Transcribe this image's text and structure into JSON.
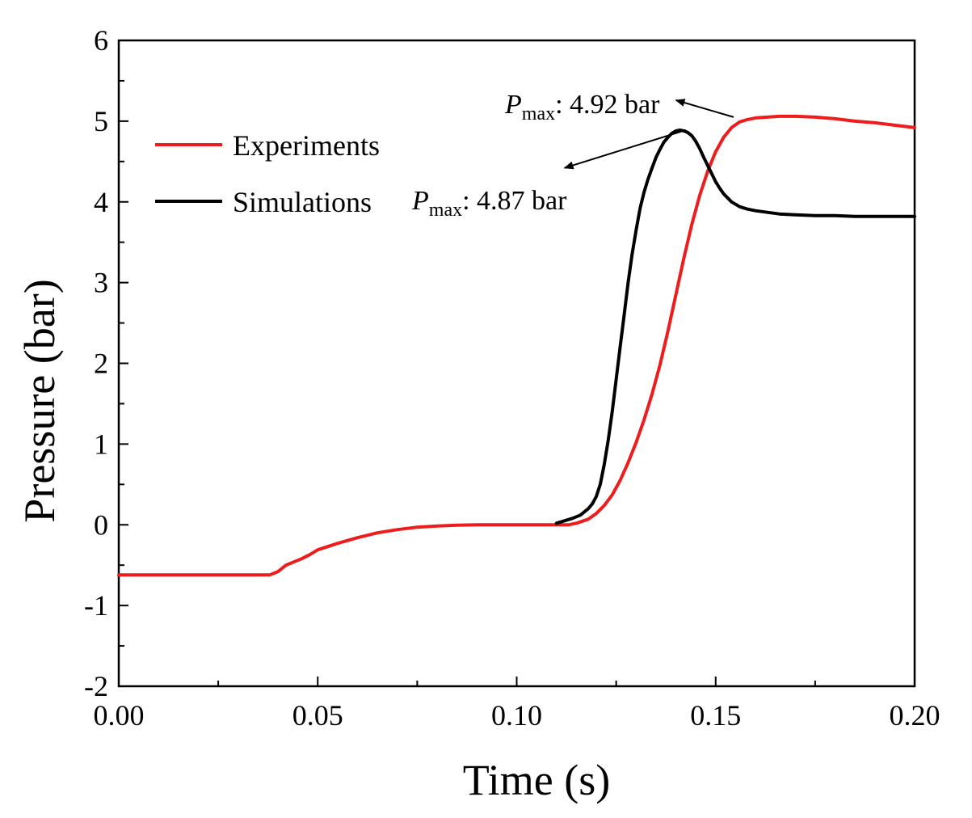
{
  "chart_data": {
    "type": "line",
    "title": "",
    "xlabel": "Time (s)",
    "ylabel": "Pressure (bar)",
    "xlim": [
      0.0,
      0.2
    ],
    "ylim": [
      -2,
      6
    ],
    "xticks": [
      0.0,
      0.05,
      0.1,
      0.15,
      0.2
    ],
    "xtick_labels": [
      "0.00",
      "0.05",
      "0.10",
      "0.15",
      "0.20"
    ],
    "yticks": [
      -2,
      -1,
      0,
      1,
      2,
      3,
      4,
      5,
      6
    ],
    "ytick_labels": [
      "-2",
      "-1",
      "0",
      "1",
      "2",
      "3",
      "4",
      "5",
      "6"
    ],
    "grid": false,
    "legend_position": "upper-left",
    "series": [
      {
        "name": "Experiments",
        "color": "#ee1c1c",
        "x": [
          0.0,
          0.01,
          0.02,
          0.03,
          0.038,
          0.04,
          0.042,
          0.044,
          0.046,
          0.048,
          0.05,
          0.055,
          0.06,
          0.065,
          0.07,
          0.075,
          0.08,
          0.085,
          0.09,
          0.095,
          0.1,
          0.105,
          0.11,
          0.113,
          0.115,
          0.118,
          0.12,
          0.122,
          0.124,
          0.126,
          0.128,
          0.13,
          0.132,
          0.134,
          0.136,
          0.138,
          0.14,
          0.142,
          0.144,
          0.146,
          0.148,
          0.15,
          0.152,
          0.154,
          0.156,
          0.158,
          0.16,
          0.163,
          0.166,
          0.17,
          0.175,
          0.18,
          0.185,
          0.19,
          0.195,
          0.2
        ],
        "y": [
          -0.62,
          -0.62,
          -0.62,
          -0.62,
          -0.62,
          -0.58,
          -0.5,
          -0.46,
          -0.42,
          -0.37,
          -0.31,
          -0.23,
          -0.16,
          -0.1,
          -0.06,
          -0.03,
          -0.015,
          -0.005,
          0.0,
          0.0,
          0.0,
          0.0,
          0.0,
          0.0,
          0.02,
          0.07,
          0.14,
          0.24,
          0.37,
          0.55,
          0.77,
          1.02,
          1.3,
          1.62,
          1.98,
          2.4,
          2.85,
          3.3,
          3.72,
          4.08,
          4.38,
          4.62,
          4.8,
          4.92,
          4.99,
          5.02,
          5.04,
          5.05,
          5.06,
          5.06,
          5.05,
          5.03,
          5.0,
          4.98,
          4.95,
          4.92
        ]
      },
      {
        "name": "Simulations",
        "color": "#000000",
        "x": [
          0.11,
          0.112,
          0.114,
          0.116,
          0.118,
          0.119,
          0.12,
          0.121,
          0.122,
          0.123,
          0.124,
          0.125,
          0.126,
          0.127,
          0.128,
          0.129,
          0.13,
          0.131,
          0.132,
          0.133,
          0.134,
          0.135,
          0.136,
          0.137,
          0.138,
          0.139,
          0.14,
          0.141,
          0.142,
          0.143,
          0.144,
          0.145,
          0.146,
          0.147,
          0.148,
          0.149,
          0.15,
          0.151,
          0.152,
          0.153,
          0.154,
          0.155,
          0.156,
          0.158,
          0.16,
          0.163,
          0.166,
          0.17,
          0.175,
          0.18,
          0.185,
          0.19,
          0.195,
          0.2
        ],
        "y": [
          0.02,
          0.05,
          0.08,
          0.12,
          0.2,
          0.26,
          0.35,
          0.5,
          0.75,
          1.05,
          1.4,
          1.8,
          2.2,
          2.6,
          3.0,
          3.35,
          3.65,
          3.92,
          4.12,
          4.28,
          4.42,
          4.55,
          4.65,
          4.74,
          4.8,
          4.85,
          4.88,
          4.89,
          4.88,
          4.86,
          4.82,
          4.75,
          4.66,
          4.55,
          4.45,
          4.35,
          4.25,
          4.17,
          4.1,
          4.05,
          4.0,
          3.97,
          3.94,
          3.91,
          3.89,
          3.87,
          3.85,
          3.84,
          3.83,
          3.83,
          3.82,
          3.82,
          3.82,
          3.82
        ]
      }
    ],
    "annotations": [
      {
        "name": "Experiments peak",
        "symbol": "P",
        "subscript": "max",
        "suffix": ": 4.92 bar",
        "x": 0.1545,
        "y": 5.05,
        "arrow_to": [
          0.14,
          5.26
        ]
      },
      {
        "name": "Simulations peak",
        "symbol": "P",
        "subscript": "max",
        "suffix": ": 4.87 bar",
        "x": 0.1425,
        "y": 4.89,
        "arrow_to": [
          0.112,
          4.42
        ]
      }
    ]
  }
}
